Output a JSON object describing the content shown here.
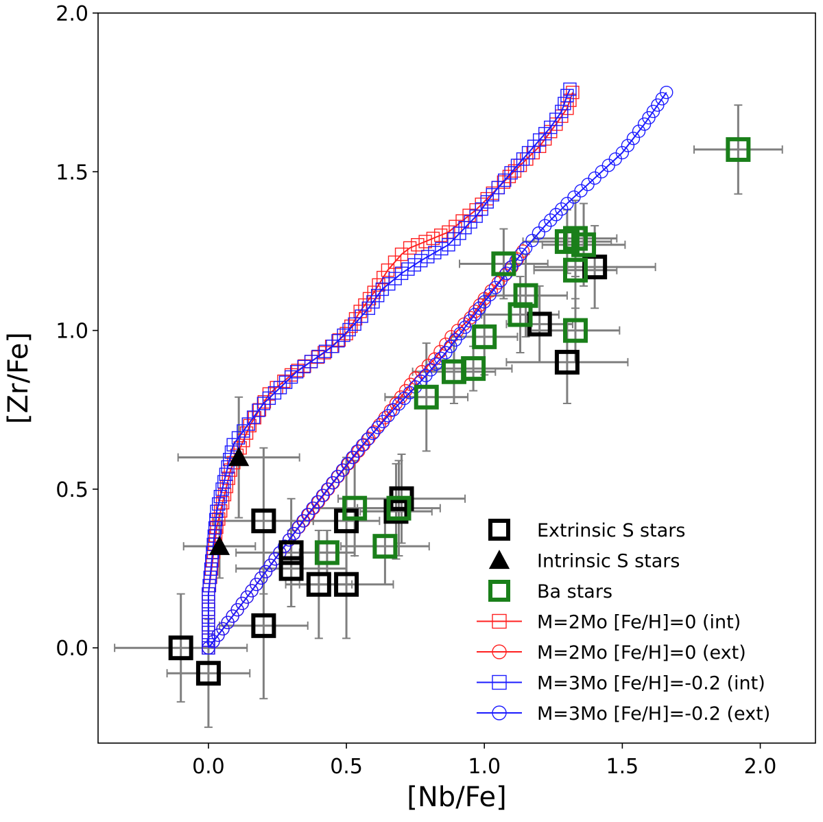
{
  "chart_data": {
    "type": "scatter",
    "xlabel": "[Nb/Fe]",
    "ylabel": "[Zr/Fe]",
    "xlim": [
      -0.4,
      2.2
    ],
    "ylim": [
      -0.3,
      2.0
    ],
    "xticks": [
      0.0,
      0.5,
      1.0,
      1.5,
      2.0
    ],
    "yticks": [
      0.0,
      0.5,
      1.0,
      1.5,
      2.0
    ],
    "xtick_labels": [
      "0.0",
      "0.5",
      "1.0",
      "1.5",
      "2.0"
    ],
    "ytick_labels": [
      "0.0",
      "0.5",
      "1.0",
      "1.5",
      "2.0"
    ],
    "legend_position": "lower-right",
    "series": [
      {
        "name": "Extrinsic S stars",
        "kind": "points",
        "marker": "square",
        "color": "#000000",
        "points": [
          {
            "x": -0.1,
            "y": 0.0,
            "xerr": 0.24,
            "yerr": 0.17
          },
          {
            "x": 0.0,
            "y": -0.08,
            "xerr": 0.15,
            "yerr": 0.17
          },
          {
            "x": 0.2,
            "y": 0.07,
            "xerr": 0.16,
            "yerr": 0.23
          },
          {
            "x": 0.2,
            "y": 0.4,
            "xerr": 0.18,
            "yerr": 0.23
          },
          {
            "x": 0.3,
            "y": 0.3,
            "xerr": 0.2,
            "yerr": 0.17
          },
          {
            "x": 0.3,
            "y": 0.25,
            "xerr": 0.2,
            "yerr": 0.12
          },
          {
            "x": 0.4,
            "y": 0.2,
            "xerr": 0.12,
            "yerr": 0.17
          },
          {
            "x": 0.5,
            "y": 0.2,
            "xerr": 0.17,
            "yerr": 0.17
          },
          {
            "x": 0.5,
            "y": 0.4,
            "xerr": 0.12,
            "yerr": 0.2
          },
          {
            "x": 0.68,
            "y": 0.43,
            "xerr": 0.13,
            "yerr": 0.15
          },
          {
            "x": 0.7,
            "y": 0.47,
            "xerr": 0.23,
            "yerr": 0.14
          },
          {
            "x": 1.2,
            "y": 1.02,
            "xerr": 0.12,
            "yerr": 0.12
          },
          {
            "x": 1.3,
            "y": 0.9,
            "xerr": 0.22,
            "yerr": 0.13
          },
          {
            "x": 1.4,
            "y": 1.2,
            "xerr": 0.22,
            "yerr": 0.13
          }
        ]
      },
      {
        "name": "Intrinsic S stars",
        "kind": "points",
        "marker": "triangle",
        "color": "#000000",
        "points": [
          {
            "x": 0.04,
            "y": 0.32,
            "xerr": 0.13,
            "yerr": 0.1
          },
          {
            "x": 0.11,
            "y": 0.6,
            "xerr": 0.22,
            "yerr": 0.19
          }
        ]
      },
      {
        "name": "Ba stars",
        "kind": "points",
        "marker": "square",
        "color": "#1a7f1a",
        "points": [
          {
            "x": 0.43,
            "y": 0.3,
            "xerr": 0.1,
            "yerr": 0.07
          },
          {
            "x": 0.53,
            "y": 0.44,
            "xerr": 0.15,
            "yerr": 0.15
          },
          {
            "x": 0.64,
            "y": 0.32,
            "xerr": 0.16,
            "yerr": 0.12
          },
          {
            "x": 0.69,
            "y": 0.44,
            "xerr": 0.15,
            "yerr": 0.15
          },
          {
            "x": 0.79,
            "y": 0.79,
            "xerr": 0.15,
            "yerr": 0.17
          },
          {
            "x": 0.89,
            "y": 0.87,
            "xerr": 0.15,
            "yerr": 0.1
          },
          {
            "x": 0.96,
            "y": 0.88,
            "xerr": 0.14,
            "yerr": 0.07
          },
          {
            "x": 1.0,
            "y": 0.98,
            "xerr": 0.12,
            "yerr": 0.12
          },
          {
            "x": 1.07,
            "y": 1.21,
            "xerr": 0.16,
            "yerr": 0.11
          },
          {
            "x": 1.13,
            "y": 1.05,
            "xerr": 0.14,
            "yerr": 0.12
          },
          {
            "x": 1.15,
            "y": 1.11,
            "xerr": 0.15,
            "yerr": 0.13
          },
          {
            "x": 1.3,
            "y": 1.28,
            "xerr": 0.16,
            "yerr": 0.1
          },
          {
            "x": 1.33,
            "y": 1.29,
            "xerr": 0.15,
            "yerr": 0.12
          },
          {
            "x": 1.36,
            "y": 1.27,
            "xerr": 0.15,
            "yerr": 0.13
          },
          {
            "x": 1.33,
            "y": 1.19,
            "xerr": 0.15,
            "yerr": 0.12
          },
          {
            "x": 1.33,
            "y": 1.0,
            "xerr": 0.16,
            "yerr": 0.1
          },
          {
            "x": 1.92,
            "y": 1.57,
            "xerr": 0.16,
            "yerr": 0.14
          }
        ]
      },
      {
        "name": "M=2Mo [Fe/H]=0 (int)",
        "kind": "model",
        "marker": "open-square",
        "color": "#ff2020",
        "points": [
          [
            0.0,
            0.0
          ],
          [
            0.0,
            0.17
          ],
          [
            0.03,
            0.38
          ],
          [
            0.08,
            0.56
          ],
          [
            0.15,
            0.7
          ],
          [
            0.22,
            0.8
          ],
          [
            0.3,
            0.86
          ],
          [
            0.42,
            0.93
          ],
          [
            0.5,
            0.99
          ],
          [
            0.55,
            1.06
          ],
          [
            0.6,
            1.12
          ],
          [
            0.65,
            1.19
          ],
          [
            0.7,
            1.24
          ],
          [
            0.73,
            1.26
          ],
          [
            0.87,
            1.31
          ],
          [
            0.97,
            1.38
          ],
          [
            1.05,
            1.45
          ],
          [
            1.13,
            1.52
          ],
          [
            1.2,
            1.58
          ],
          [
            1.26,
            1.65
          ],
          [
            1.3,
            1.7
          ],
          [
            1.32,
            1.75
          ]
        ]
      },
      {
        "name": "M=2Mo [Fe/H]=0 (ext)",
        "kind": "model",
        "marker": "open-circle",
        "color": "#ff2020",
        "points": [
          [
            0.0,
            0.0
          ],
          [
            0.14,
            0.16
          ],
          [
            0.31,
            0.36
          ],
          [
            0.47,
            0.54
          ],
          [
            0.6,
            0.68
          ],
          [
            0.68,
            0.77
          ],
          [
            0.75,
            0.85
          ],
          [
            0.82,
            0.91
          ],
          [
            0.88,
            0.98
          ],
          [
            0.95,
            1.04
          ],
          [
            1.0,
            1.1
          ],
          [
            1.05,
            1.15
          ],
          [
            1.1,
            1.2
          ],
          [
            1.14,
            1.25
          ]
        ]
      },
      {
        "name": "M=3Mo [Fe/H]=-0.2 (int)",
        "kind": "model",
        "marker": "open-square",
        "color": "#1a1aff",
        "points": [
          [
            0.0,
            0.0
          ],
          [
            0.0,
            0.17
          ],
          [
            0.03,
            0.43
          ],
          [
            0.09,
            0.64
          ],
          [
            0.2,
            0.77
          ],
          [
            0.32,
            0.87
          ],
          [
            0.45,
            0.95
          ],
          [
            0.53,
            1.02
          ],
          [
            0.58,
            1.07
          ],
          [
            0.63,
            1.13
          ],
          [
            0.7,
            1.18
          ],
          [
            0.77,
            1.22
          ],
          [
            0.87,
            1.27
          ],
          [
            0.97,
            1.36
          ],
          [
            1.05,
            1.45
          ],
          [
            1.12,
            1.52
          ],
          [
            1.18,
            1.58
          ],
          [
            1.24,
            1.64
          ],
          [
            1.28,
            1.69
          ],
          [
            1.3,
            1.74
          ],
          [
            1.31,
            1.76
          ]
        ]
      },
      {
        "name": "M=3Mo [Fe/H]=-0.2 (ext)",
        "kind": "model",
        "marker": "open-circle",
        "color": "#1a1aff",
        "points": [
          [
            0.0,
            0.0
          ],
          [
            0.14,
            0.16
          ],
          [
            0.36,
            0.42
          ],
          [
            0.54,
            0.62
          ],
          [
            0.67,
            0.75
          ],
          [
            0.77,
            0.84
          ],
          [
            0.86,
            0.93
          ],
          [
            0.93,
            1.01
          ],
          [
            1.0,
            1.09
          ],
          [
            1.08,
            1.18
          ],
          [
            1.15,
            1.26
          ],
          [
            1.22,
            1.33
          ],
          [
            1.3,
            1.4
          ],
          [
            1.4,
            1.48
          ],
          [
            1.5,
            1.56
          ],
          [
            1.58,
            1.65
          ],
          [
            1.66,
            1.75
          ]
        ]
      }
    ]
  }
}
